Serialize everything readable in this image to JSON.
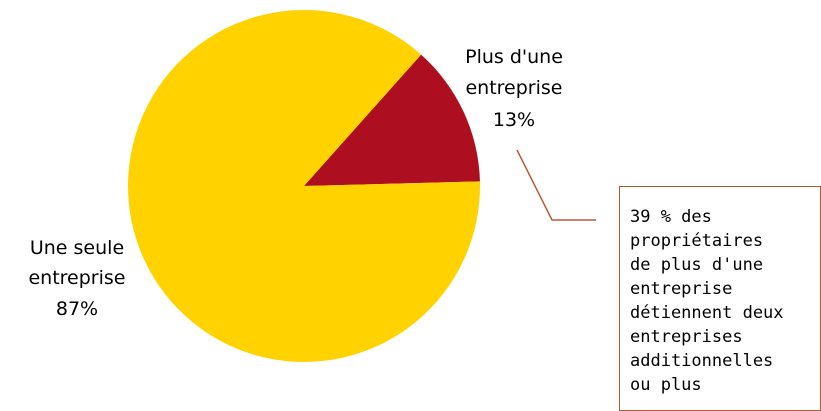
{
  "chart_data": {
    "type": "pie",
    "slices": [
      {
        "category_lines": [
          "Plus d'une",
          "entreprise"
        ],
        "percent_label": "13%",
        "value": 13,
        "color": "#ad0e20"
      },
      {
        "category_lines": [
          "Une seule",
          "entreprise"
        ],
        "percent_label": "87%",
        "value": 87,
        "color": "#ffd200"
      }
    ],
    "callout": {
      "lines": [
        "39 % des",
        "propriétaires",
        "de plus d'une",
        "entreprise",
        "détiennent deux",
        "entreprises",
        "additionnelles",
        "ou plus"
      ],
      "line_color": "#b55a36"
    }
  }
}
